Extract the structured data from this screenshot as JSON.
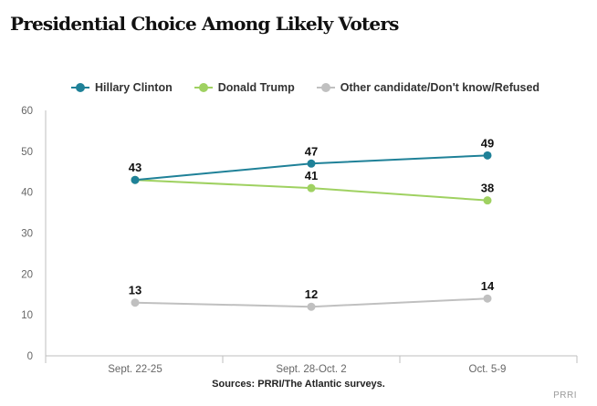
{
  "colors": {
    "clinton": "#1f8198",
    "trump": "#9fd161",
    "other": "#c0c0c0",
    "axis": "#bfbfbf",
    "tick_text": "#666666",
    "label_text": "#111111"
  },
  "chart_data": {
    "type": "line",
    "title": "Presidential Choice Among Likely Voters",
    "categories": [
      "Sept. 22-25",
      "Sept. 28-Oct. 2",
      "Oct. 5-9"
    ],
    "series": [
      {
        "name": "Hillary Clinton",
        "values": [
          43,
          47,
          49
        ]
      },
      {
        "name": "Donald Trump",
        "values": [
          43,
          41,
          38
        ]
      },
      {
        "name": "Other candidate/Don't know/Refused",
        "values": [
          13,
          12,
          14
        ]
      }
    ],
    "point_labels": [
      {
        "series": 0,
        "index": 0,
        "text": "43"
      },
      {
        "series": 0,
        "index": 1,
        "text": "47"
      },
      {
        "series": 0,
        "index": 2,
        "text": "49"
      },
      {
        "series": 1,
        "index": 1,
        "text": "41"
      },
      {
        "series": 1,
        "index": 2,
        "text": "38"
      },
      {
        "series": 2,
        "index": 0,
        "text": "13"
      },
      {
        "series": 2,
        "index": 1,
        "text": "12"
      },
      {
        "series": 2,
        "index": 2,
        "text": "14"
      }
    ],
    "yticks": [
      0,
      10,
      20,
      30,
      40,
      50,
      60
    ],
    "ylim": [
      0,
      60
    ],
    "xlabel": "",
    "ylabel": "",
    "grid": false,
    "legend": "top"
  },
  "footer": {
    "source": "Sources: PRRI/The Atlantic surveys.",
    "credit": "PRRI"
  }
}
